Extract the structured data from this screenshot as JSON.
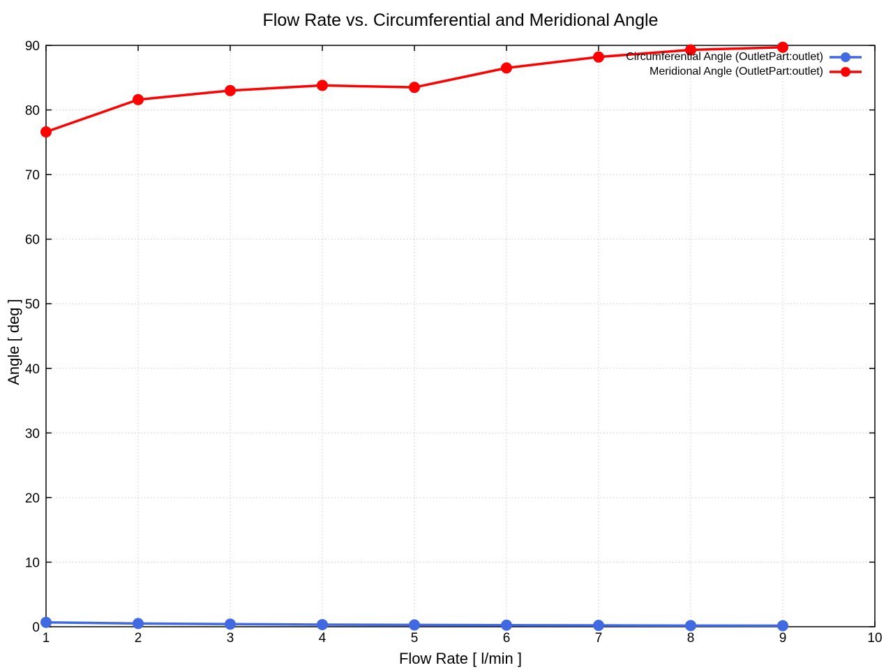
{
  "title": "Flow Rate vs. Circumferential and Meridional Angle",
  "axes": {
    "xlabel": "Flow Rate [ l/min ]",
    "ylabel": "Angle [ deg ]"
  },
  "legend": {
    "position": "top-right",
    "entries": [
      {
        "label": "Circumferential Angle (OutletPart:outlet)",
        "color": "#4169e1"
      },
      {
        "label": "Meridional Angle (OutletPart:outlet)",
        "color": "#ff0000"
      }
    ]
  },
  "colors": {
    "background": "#ffffff",
    "border": "#000000",
    "grid": "#c9c9c9",
    "text": "#000000",
    "series_circumferential": "#4169e1",
    "series_meridional": "#ff0000"
  },
  "chart_data": {
    "type": "line",
    "title": "Flow Rate vs. Circumferential and Meridional Angle",
    "xlabel": "Flow Rate [ l/min ]",
    "ylabel": "Angle [ deg ]",
    "x": [
      1,
      2,
      3,
      4,
      5,
      6,
      7,
      8,
      9
    ],
    "series": [
      {
        "name": "Circumferential Angle (OutletPart:outlet)",
        "color": "#4169e1",
        "values": [
          0.68,
          0.5,
          0.4,
          0.33,
          0.28,
          0.24,
          0.21,
          0.18,
          0.16
        ]
      },
      {
        "name": "Meridional Angle (OutletPart:outlet)",
        "color": "#ff0000",
        "values": [
          76.6,
          81.6,
          83.0,
          83.8,
          83.5,
          86.5,
          88.2,
          89.3,
          89.7
        ]
      }
    ],
    "xlim": [
      1,
      10
    ],
    "ylim": [
      0,
      90
    ],
    "xticks": [
      1,
      2,
      3,
      4,
      5,
      6,
      7,
      8,
      9,
      10
    ],
    "yticks": [
      0,
      10,
      20,
      30,
      40,
      50,
      60,
      70,
      80,
      90
    ],
    "grid": true,
    "grid_style": "dotted",
    "legend_position": "top-right",
    "line_width": 3.5,
    "marker": "filled-circle",
    "marker_radius": 8
  }
}
